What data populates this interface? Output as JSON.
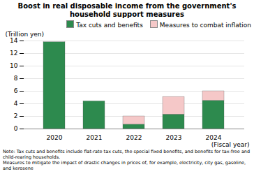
{
  "chart_data": {
    "type": "bar",
    "stacked": true,
    "title": "Boost in real disposable income from the government's\nhousehold support measures",
    "ylabel": "(Trillion yen)",
    "xlabel": "(Fiscal year)",
    "categories": [
      "2020",
      "2021",
      "2022",
      "2023",
      "2024"
    ],
    "series": [
      {
        "name": "Tax cuts and benefits",
        "color": "#2d8a4e",
        "values": [
          13.8,
          4.4,
          0.7,
          2.3,
          4.5
        ]
      },
      {
        "name": "Measures to combat inflation",
        "color": "#f5c8c8",
        "values": [
          0.0,
          0.0,
          1.3,
          2.8,
          1.5
        ]
      }
    ],
    "ylim": [
      0,
      14
    ],
    "yticks": [
      0,
      2,
      4,
      6,
      8,
      10,
      12,
      14
    ],
    "grid": true,
    "legend": "upper right",
    "annotations": [
      "Note: Tax cuts and benefits include flat-rate tax cuts, the special fixed benefits, and benefits for tax-free and\nchild-rearing households.",
      "Measures to mitigate the impact of drastic changes in prices of, for example, electricity, city gas, gasoline,\nand kerosene"
    ]
  }
}
